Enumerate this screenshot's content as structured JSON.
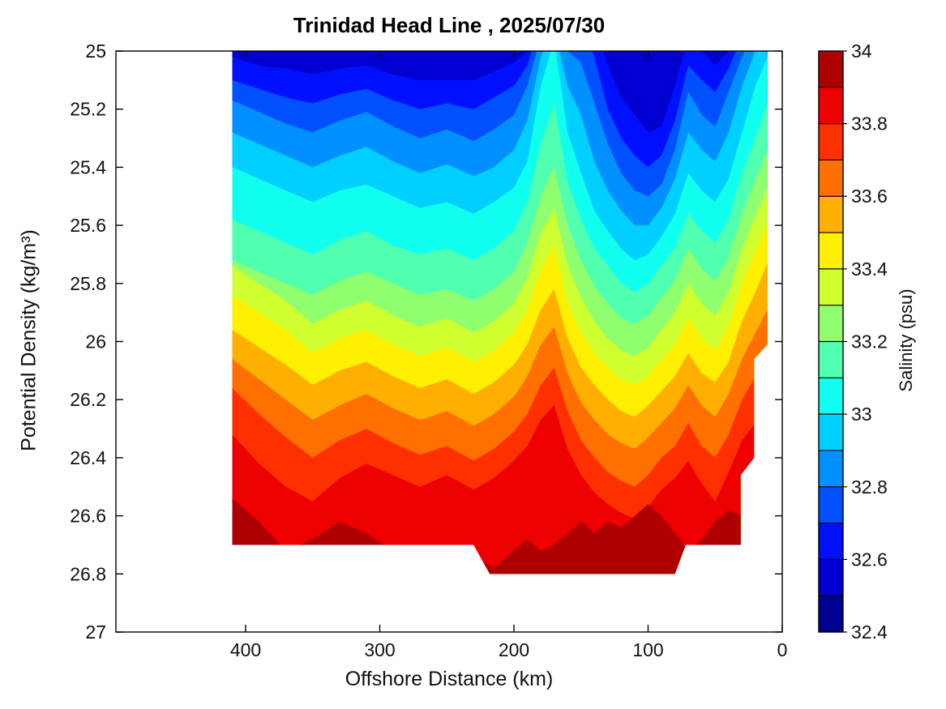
{
  "figure": {
    "title": "Trinidad Head Line , 2025/07/30",
    "xlabel": "Offshore Distance (km)",
    "ylabel": "Potential Density (kg/m³)",
    "colorbar_label": "Salinity (psu)"
  },
  "chart_data": {
    "type": "filled-contour",
    "title": "Trinidad Head Line , 2025/07/30",
    "xlabel": "Offshore Distance (km)",
    "ylabel": "Potential Density (kg/m³)",
    "x_axis": {
      "min": 0,
      "max": 496,
      "reversed": true,
      "ticks": [
        400,
        300,
        200,
        100,
        0
      ]
    },
    "y_axis": {
      "min": 25,
      "max": 27,
      "increases_downward": true,
      "ticks": [
        25,
        25.2,
        25.4,
        25.6,
        25.8,
        26,
        26.2,
        26.4,
        26.6,
        26.8,
        27
      ]
    },
    "colorbar": {
      "label": "Salinity (psu)",
      "min": 32.4,
      "max": 34,
      "band_step": 0.1,
      "ticks": [
        32.4,
        32.6,
        32.8,
        33,
        33.2,
        33.4,
        33.6,
        33.8,
        34
      ],
      "colors_bottom_to_top": [
        "#000090",
        "#0000D0",
        "#0010FF",
        "#0050FF",
        "#0090FF",
        "#00D0FF",
        "#10FFEF",
        "#50FFAF",
        "#90FF6F",
        "#D0FF30",
        "#FFEF00",
        "#FFAF00",
        "#FF7000",
        "#FF3000",
        "#EF0000",
        "#AF0000"
      ]
    },
    "stations_km": [
      410,
      390,
      370,
      350,
      330,
      310,
      290,
      270,
      250,
      230,
      215,
      200,
      190,
      180,
      170,
      160,
      150,
      140,
      130,
      120,
      110,
      100,
      90,
      80,
      70,
      60,
      50,
      40,
      30,
      20,
      11
    ],
    "region_outline_km_sigma": [
      [
        410,
        25.0
      ],
      [
        11,
        25.0
      ],
      [
        11,
        26.01
      ],
      [
        21,
        26.06
      ],
      [
        21,
        26.4
      ],
      [
        31,
        26.46
      ],
      [
        31,
        26.7
      ],
      [
        72,
        26.7
      ],
      [
        80,
        26.8
      ],
      [
        218,
        26.8
      ],
      [
        230,
        26.7
      ],
      [
        410,
        26.7
      ]
    ],
    "isolines": [
      {
        "level": 32.6,
        "depths": [
          25.02,
          25.05,
          25.06,
          25.08,
          25.06,
          25.05,
          25.08,
          25.1,
          25.1,
          25.1,
          25.07,
          25.04,
          25.0,
          24.9,
          24.9,
          24.9,
          24.9,
          24.9,
          25.05,
          25.16,
          25.22,
          25.28,
          25.26,
          25.12,
          24.95,
          25.0,
          25.05,
          25.0,
          24.9,
          24.9,
          24.9
        ]
      },
      {
        "level": 32.7,
        "depths": [
          25.1,
          25.13,
          25.16,
          25.18,
          25.15,
          25.13,
          25.17,
          25.2,
          25.18,
          25.2,
          25.16,
          25.12,
          25.05,
          24.9,
          24.9,
          24.9,
          24.9,
          25.02,
          25.2,
          25.3,
          25.36,
          25.4,
          25.36,
          25.24,
          25.05,
          25.1,
          25.14,
          25.06,
          24.95,
          24.9,
          24.9
        ]
      },
      {
        "level": 32.8,
        "depths": [
          25.17,
          25.21,
          25.25,
          25.28,
          25.24,
          25.21,
          25.26,
          25.3,
          25.27,
          25.31,
          25.27,
          25.22,
          25.12,
          24.95,
          24.9,
          25.0,
          25.04,
          25.18,
          25.32,
          25.42,
          25.48,
          25.5,
          25.46,
          25.34,
          25.14,
          25.22,
          25.26,
          25.14,
          25.02,
          24.92,
          24.9
        ]
      },
      {
        "level": 32.9,
        "depths": [
          25.28,
          25.32,
          25.36,
          25.4,
          25.36,
          25.33,
          25.38,
          25.42,
          25.39,
          25.43,
          25.4,
          25.34,
          25.24,
          25.02,
          24.92,
          25.12,
          25.22,
          25.38,
          25.48,
          25.55,
          25.6,
          25.6,
          25.54,
          25.44,
          25.28,
          25.34,
          25.38,
          25.28,
          25.12,
          25.0,
          24.9
        ]
      },
      {
        "level": 33.0,
        "depths": [
          25.4,
          25.44,
          25.48,
          25.52,
          25.48,
          25.46,
          25.5,
          25.54,
          25.52,
          25.56,
          25.52,
          25.47,
          25.38,
          25.12,
          24.96,
          25.28,
          25.42,
          25.55,
          25.62,
          25.68,
          25.72,
          25.7,
          25.64,
          25.56,
          25.42,
          25.48,
          25.52,
          25.44,
          25.28,
          25.12,
          25.02
        ]
      },
      {
        "level": 33.1,
        "depths": [
          25.58,
          25.62,
          25.66,
          25.7,
          25.65,
          25.62,
          25.67,
          25.7,
          25.68,
          25.72,
          25.68,
          25.62,
          25.52,
          25.32,
          25.18,
          25.45,
          25.58,
          25.68,
          25.74,
          25.8,
          25.83,
          25.8,
          25.74,
          25.68,
          25.56,
          25.62,
          25.66,
          25.58,
          25.42,
          25.3,
          25.18
        ]
      },
      {
        "level": 33.2,
        "depths": [
          25.72,
          25.76,
          25.8,
          25.84,
          25.79,
          25.76,
          25.8,
          25.84,
          25.82,
          25.86,
          25.82,
          25.76,
          25.66,
          25.5,
          25.4,
          25.6,
          25.72,
          25.81,
          25.87,
          25.92,
          25.94,
          25.91,
          25.85,
          25.79,
          25.68,
          25.75,
          25.79,
          25.71,
          25.56,
          25.44,
          25.34
        ]
      },
      {
        "level": 33.3,
        "depths": [
          25.74,
          25.8,
          25.86,
          25.94,
          25.89,
          25.86,
          25.91,
          25.95,
          25.92,
          25.97,
          25.93,
          25.87,
          25.78,
          25.63,
          25.54,
          25.74,
          25.85,
          25.93,
          25.99,
          26.03,
          26.05,
          26.02,
          25.96,
          25.9,
          25.8,
          25.87,
          25.91,
          25.83,
          25.68,
          25.57,
          25.47
        ]
      },
      {
        "level": 33.4,
        "depths": [
          25.84,
          25.9,
          25.96,
          26.04,
          25.99,
          25.96,
          26.01,
          26.05,
          26.02,
          26.07,
          26.03,
          25.97,
          25.89,
          25.75,
          25.67,
          25.87,
          25.97,
          26.04,
          26.09,
          26.13,
          26.15,
          26.12,
          26.06,
          26.01,
          25.92,
          25.99,
          26.03,
          25.95,
          25.8,
          25.69,
          25.59
        ]
      },
      {
        "level": 33.5,
        "depths": [
          25.96,
          26.02,
          26.08,
          26.15,
          26.1,
          26.07,
          26.12,
          26.16,
          26.13,
          26.18,
          26.14,
          26.08,
          26.01,
          25.89,
          25.82,
          25.99,
          26.09,
          26.15,
          26.2,
          26.24,
          26.26,
          26.22,
          26.17,
          26.12,
          26.04,
          26.11,
          26.14,
          26.07,
          25.93,
          25.83,
          25.73
        ]
      },
      {
        "level": 33.6,
        "depths": [
          26.06,
          26.13,
          26.2,
          26.27,
          26.22,
          26.18,
          26.23,
          26.27,
          26.24,
          26.29,
          26.25,
          26.19,
          26.12,
          26.01,
          25.95,
          26.11,
          26.21,
          26.27,
          26.32,
          26.35,
          26.37,
          26.33,
          26.28,
          26.23,
          26.15,
          26.22,
          26.26,
          26.18,
          26.06,
          25.97,
          25.89
        ]
      },
      {
        "level": 33.7,
        "depths": [
          26.16,
          26.25,
          26.33,
          26.4,
          26.34,
          26.3,
          26.35,
          26.39,
          26.36,
          26.41,
          26.37,
          26.31,
          26.25,
          26.15,
          26.09,
          26.24,
          26.34,
          26.4,
          26.45,
          26.48,
          26.5,
          26.46,
          26.4,
          26.36,
          26.28,
          26.36,
          26.4,
          26.32,
          26.2,
          26.12,
          26.04
        ]
      },
      {
        "level": 33.8,
        "depths": [
          26.32,
          26.42,
          26.5,
          26.55,
          26.47,
          26.42,
          26.46,
          26.5,
          26.46,
          26.51,
          26.47,
          26.41,
          26.36,
          26.27,
          26.22,
          26.37,
          26.46,
          26.52,
          26.56,
          26.59,
          26.61,
          26.57,
          26.51,
          26.47,
          26.41,
          26.49,
          26.55,
          26.45,
          26.34,
          26.28,
          26.2
        ]
      },
      {
        "level": 33.9,
        "depths": [
          26.54,
          26.62,
          26.72,
          26.68,
          26.62,
          26.66,
          26.72,
          26.7,
          26.72,
          26.74,
          26.78,
          26.72,
          26.68,
          26.72,
          26.7,
          26.66,
          26.62,
          26.66,
          26.62,
          26.64,
          26.6,
          26.56,
          26.6,
          26.66,
          26.72,
          26.68,
          26.62,
          26.58,
          26.6,
          26.64,
          26.62
        ]
      }
    ]
  }
}
